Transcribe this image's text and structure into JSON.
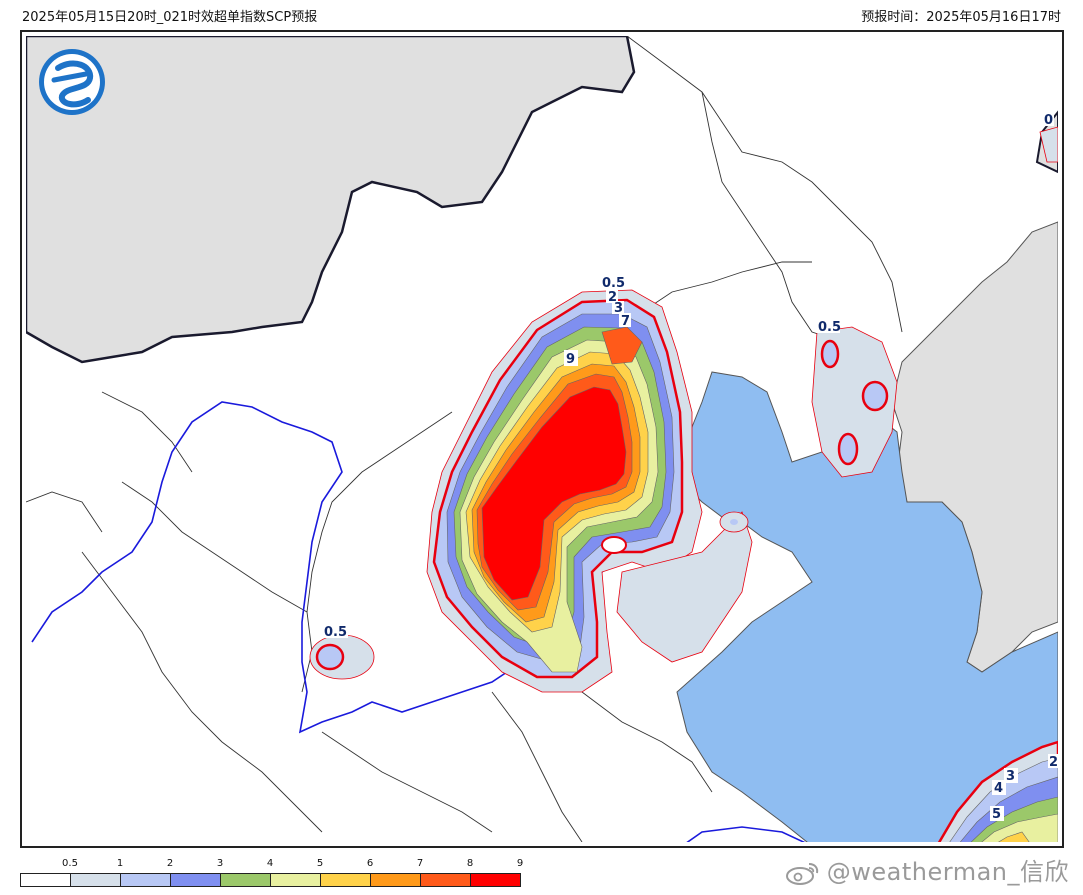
{
  "header": {
    "title": "2025年05月15日20时_021时效超单指数SCP预报",
    "forecast_time_label": "预报时间：2025年05月16日17时"
  },
  "colors": {
    "ocean": "#8fbdf1",
    "land_gray": "#e0e0e0",
    "border_dark": "#1a1a2e",
    "border_blue": "#1a1adc",
    "contour_red": "#e8000f"
  },
  "legend": {
    "ticks": [
      "0.5",
      "1",
      "2",
      "3",
      "4",
      "5",
      "6",
      "7",
      "8",
      "9"
    ],
    "colors": [
      "#ffffff",
      "#d6e0ea",
      "#b8c8f5",
      "#7f8ff0",
      "#9bc86a",
      "#e8f0a0",
      "#ffd24a",
      "#ff9a1a",
      "#ff5a1a",
      "#ff0000"
    ]
  },
  "contour_labels": {
    "north_cluster": [
      "0.5",
      "2",
      "3",
      "7"
    ],
    "center": "9",
    "northeast": "0.5",
    "west": "0.5",
    "top_right": "0",
    "bottom_right": [
      "3",
      "4",
      "5",
      "2"
    ]
  },
  "watermark": "@weatherman_信欣",
  "logo_icon": "cma-logo-icon"
}
